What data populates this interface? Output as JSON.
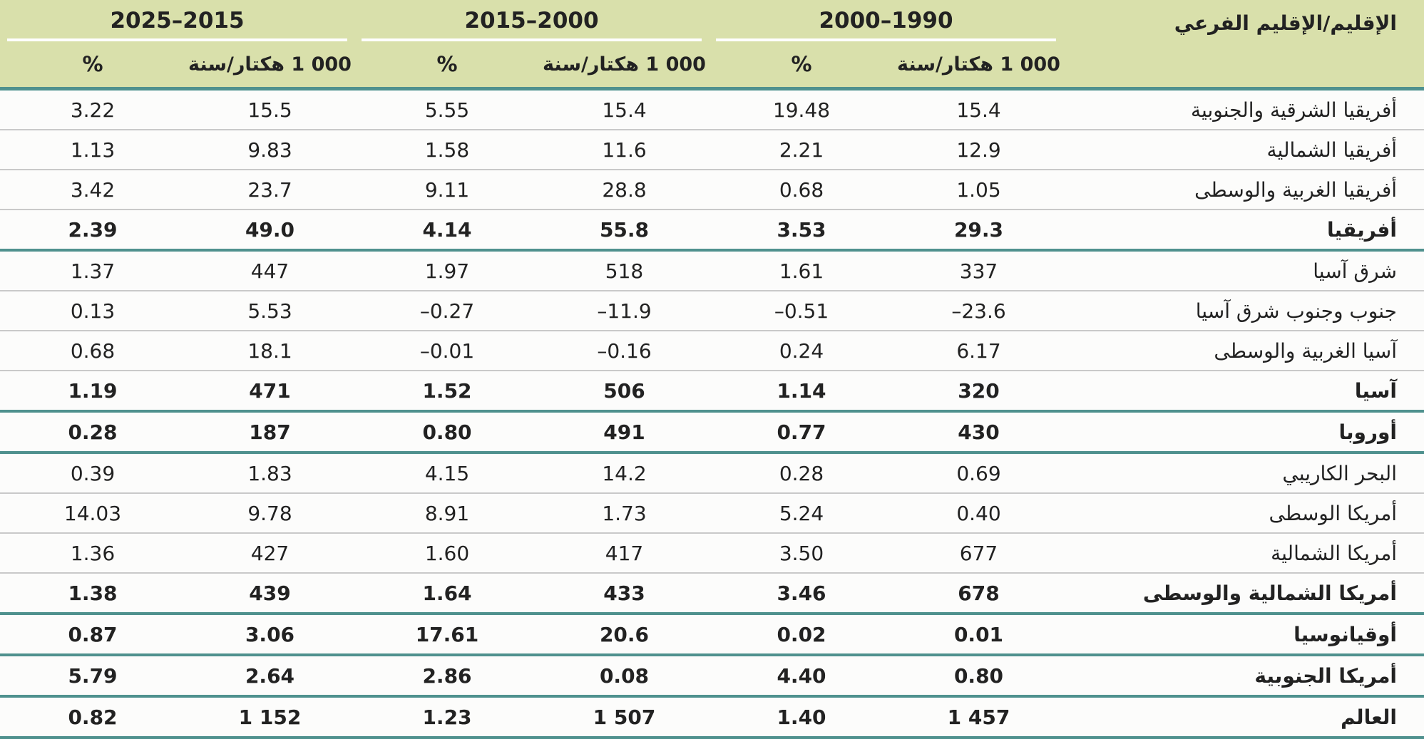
{
  "colors": {
    "header_bg": "#d9e0ab",
    "teal": "#4f918e",
    "row_line": "#c9c9c9",
    "text": "#222222"
  },
  "table": {
    "region_header": "الإقليم/الإقليم الفرعي",
    "period_headers": [
      "2025–2015",
      "2015–2000",
      "2000–1990"
    ],
    "pct_label": "%",
    "unit_label": "1 000 هكتار/سنة",
    "rows": [
      {
        "region": "أفريقيا الشرقية والجنوبية",
        "bold": false,
        "values": [
          "3.22",
          "15.5",
          "5.55",
          "15.4",
          "19.48",
          "15.4"
        ]
      },
      {
        "region": "أفريقيا الشمالية",
        "bold": false,
        "values": [
          "1.13",
          "9.83",
          "1.58",
          "11.6",
          "2.21",
          "12.9"
        ]
      },
      {
        "region": "أفريقيا الغربية والوسطى",
        "bold": false,
        "values": [
          "3.42",
          "23.7",
          "9.11",
          "28.8",
          "0.68",
          "1.05"
        ]
      },
      {
        "region": "أفريقيا",
        "bold": true,
        "values": [
          "2.39",
          "49.0",
          "4.14",
          "55.8",
          "3.53",
          "29.3"
        ]
      },
      {
        "region": "شرق آسيا",
        "bold": false,
        "values": [
          "1.37",
          "447",
          "1.97",
          "518",
          "1.61",
          "337"
        ]
      },
      {
        "region": "جنوب وجنوب شرق آسيا",
        "bold": false,
        "values": [
          "0.13",
          "5.53",
          "–0.27",
          "–11.9",
          "–0.51",
          "–23.6"
        ]
      },
      {
        "region": "آسيا الغربية والوسطى",
        "bold": false,
        "values": [
          "0.68",
          "18.1",
          "–0.01",
          "–0.16",
          "0.24",
          "6.17"
        ]
      },
      {
        "region": "آسيا",
        "bold": true,
        "values": [
          "1.19",
          "471",
          "1.52",
          "506",
          "1.14",
          "320"
        ]
      },
      {
        "region": "أوروبا",
        "bold": true,
        "values": [
          "0.28",
          "187",
          "0.80",
          "491",
          "0.77",
          "430"
        ]
      },
      {
        "region": "البحر الكاريبي",
        "bold": false,
        "values": [
          "0.39",
          "1.83",
          "4.15",
          "14.2",
          "0.28",
          "0.69"
        ]
      },
      {
        "region": "أمريكا الوسطى",
        "bold": false,
        "values": [
          "14.03",
          "9.78",
          "8.91",
          "1.73",
          "5.24",
          "0.40"
        ]
      },
      {
        "region": "أمريكا الشمالية",
        "bold": false,
        "values": [
          "1.36",
          "427",
          "1.60",
          "417",
          "3.50",
          "677"
        ]
      },
      {
        "region": "أمريكا الشمالية والوسطى",
        "bold": true,
        "values": [
          "1.38",
          "439",
          "1.64",
          "433",
          "3.46",
          "678"
        ]
      },
      {
        "region": "أوقيانوسيا",
        "bold": true,
        "values": [
          "0.87",
          "3.06",
          "17.61",
          "20.6",
          "0.02",
          "0.01"
        ]
      },
      {
        "region": "أمريكا الجنوبية",
        "bold": true,
        "values": [
          "5.79",
          "2.64",
          "2.86",
          "0.08",
          "4.40",
          "0.80"
        ]
      },
      {
        "region": "العالم",
        "bold": true,
        "values": [
          "0.82",
          "1 152",
          "1.23",
          "1 507",
          "1.40",
          "1 457"
        ]
      }
    ]
  }
}
